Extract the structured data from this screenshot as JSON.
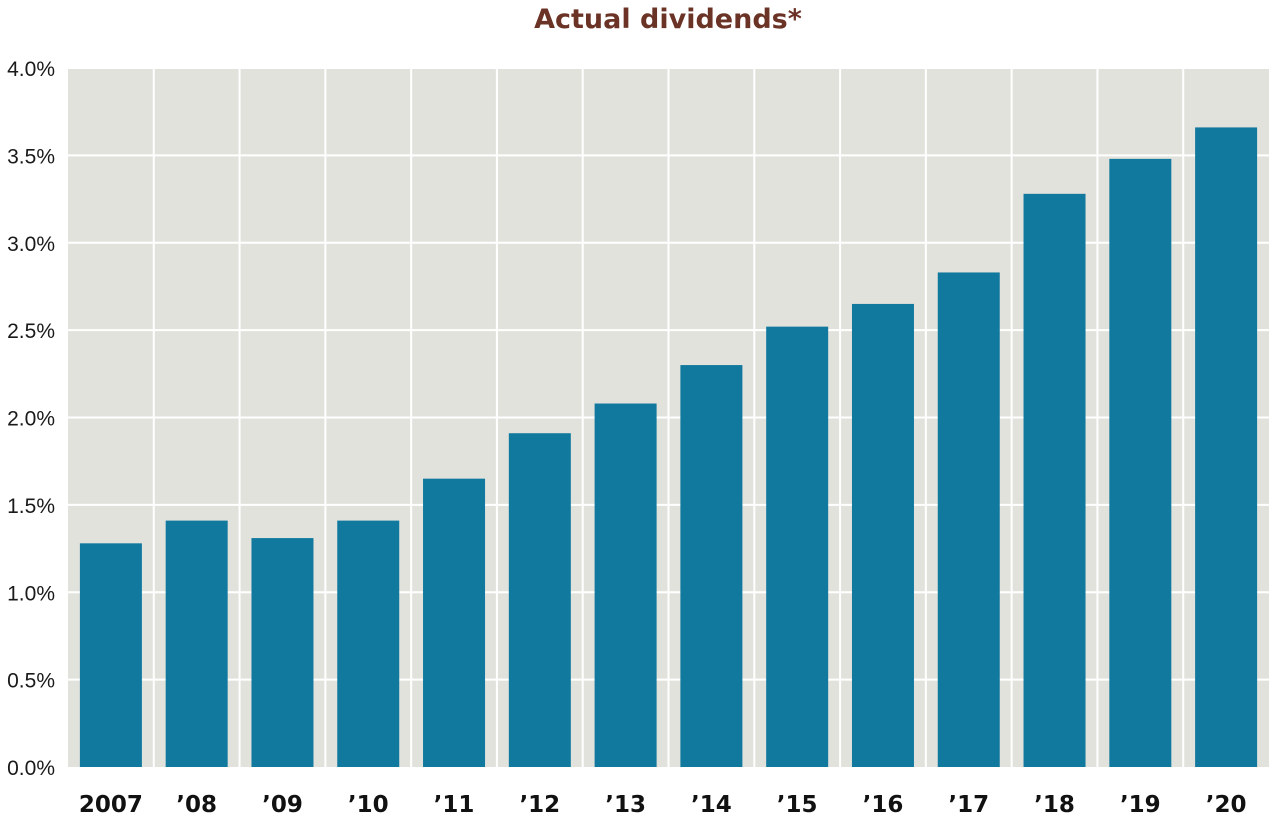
{
  "chart_data": {
    "type": "bar",
    "title": "Actual dividends*",
    "xlabel": "",
    "ylabel": "",
    "categories": [
      "2007",
      "’08",
      "’09",
      "’10",
      "’11",
      "’12",
      "’13",
      "’14",
      "’15",
      "’16",
      "’17",
      "’18",
      "’19",
      "’20"
    ],
    "values": [
      1.28,
      1.41,
      1.31,
      1.41,
      1.65,
      1.91,
      2.08,
      2.3,
      2.52,
      2.65,
      2.83,
      3.28,
      3.48,
      3.66
    ],
    "ylim": [
      0,
      4.0
    ],
    "yticks": [
      "0.0%",
      "0.5%",
      "1.0%",
      "1.5%",
      "2.0%",
      "2.5%",
      "3.0%",
      "3.5%",
      "4.0%"
    ],
    "ytick_values": [
      0,
      0.5,
      1.0,
      1.5,
      2.0,
      2.5,
      3.0,
      3.5,
      4.0
    ],
    "grid": true,
    "legend": "none"
  },
  "colors": {
    "bar": "#11799e",
    "plot_background": "#e2e2dd",
    "gridline": "#ffffff",
    "title": "#6b3326"
  }
}
